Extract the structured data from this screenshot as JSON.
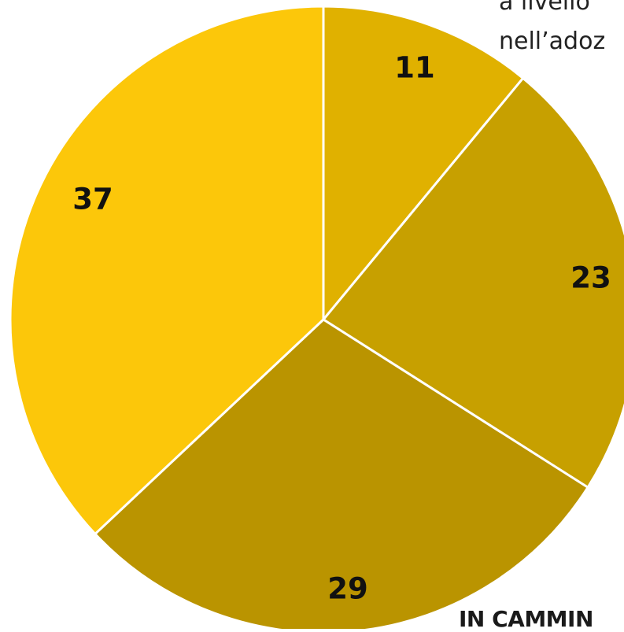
{
  "chart_data": {
    "type": "pie",
    "categories": [
      "",
      "",
      "",
      ""
    ],
    "values": [
      11,
      23,
      29,
      37
    ],
    "data_labels": [
      "11",
      "23",
      "29",
      "37"
    ],
    "colors": [
      "#E0B100",
      "#C7A000",
      "#BA9400",
      "#FCC70A"
    ],
    "start_angle_deg": 0,
    "direction": "clockwise",
    "slice_border_color": "#ffffff",
    "legend": "none"
  },
  "caption": {
    "line1": "a livello",
    "line2": "nell’adoz"
  },
  "footer": {
    "text": "IN CAMMIN"
  }
}
